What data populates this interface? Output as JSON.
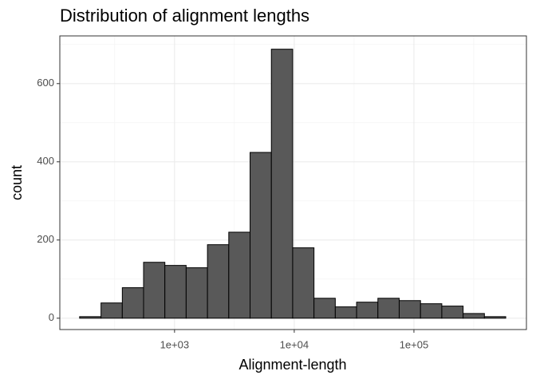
{
  "chart_data": {
    "type": "histogram",
    "title": "Distribution of alignment lengths",
    "x_label": "Alignment-length",
    "y_label": "count",
    "bins": [
      161,
      243,
      366,
      551,
      830,
      1250,
      1884,
      2838,
      4276,
      6442,
      9705,
      14622,
      22029,
      33189,
      50003,
      75336,
      113501,
      171000,
      257632,
      388150,
      584790
    ],
    "values": [
      4,
      39,
      78,
      143,
      135,
      129,
      188,
      220,
      424,
      688,
      180,
      51,
      29,
      41,
      51,
      45,
      37,
      31,
      12,
      4
    ],
    "color": "#595959",
    "x_log": true,
    "xlim": [
      110,
      871000
    ],
    "xticks": [
      {
        "value": 1000,
        "label": "1e+03"
      },
      {
        "value": 10000,
        "label": "1e+04"
      },
      {
        "value": 100000,
        "label": "1e+05"
      }
    ],
    "ylim": [
      -29,
      722
    ],
    "yticks": [
      0,
      200,
      400,
      600
    ],
    "grid": true
  }
}
